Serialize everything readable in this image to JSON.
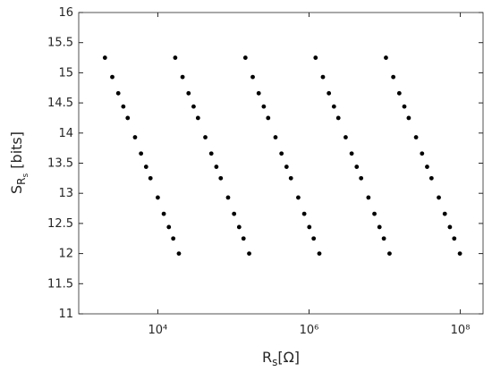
{
  "chart_data": {
    "type": "scatter",
    "xlabel": {
      "main": "R",
      "sub": "s",
      "rest": "[Ω]"
    },
    "ylabel": {
      "main": "S",
      "sub": "R",
      "subsub": "s",
      "rest": " [bits]"
    },
    "log_x": true,
    "color": "#000000",
    "xlim": [
      900,
      200000000
    ],
    "xticks": [
      {
        "value": 10000,
        "label": "10⁴"
      },
      {
        "value": 1000000,
        "label": "10⁶"
      },
      {
        "value": 100000000,
        "label": "10⁸"
      }
    ],
    "ylim": [
      11,
      16
    ],
    "yticks": [
      11,
      11.5,
      12,
      12.5,
      13,
      13.5,
      14,
      14.5,
      15,
      15.5,
      16
    ],
    "x": [
      2000,
      2500,
      3000,
      3500,
      4000,
      5000,
      6000,
      7000,
      8000,
      10000,
      12000,
      14000,
      16000,
      19000,
      17000,
      21250,
      25500,
      29750,
      34000,
      42500,
      51000,
      59500,
      68000,
      85000,
      102000,
      119000,
      136000,
      161500,
      144000,
      180000,
      216000,
      252000,
      288000,
      360000,
      432000,
      504000,
      576000,
      720000,
      864000,
      1008000,
      1152000,
      1368000,
      1220000,
      1525000,
      1830000,
      2135000,
      2440000,
      3050000,
      3660000,
      4270000,
      4880000,
      6100000,
      7320000,
      8540000,
      9760000,
      11590000,
      10400000,
      13000000,
      15600000,
      18200000,
      20800000,
      26000000,
      31200000,
      36400000,
      41600000,
      52000000,
      62400000,
      72800000,
      83200000,
      98800000
    ],
    "values": [
      15.25,
      14.93,
      14.66,
      14.44,
      14.25,
      13.93,
      13.66,
      13.44,
      13.25,
      12.93,
      12.66,
      12.44,
      12.25,
      12,
      15.25,
      14.93,
      14.66,
      14.44,
      14.25,
      13.93,
      13.66,
      13.44,
      13.25,
      12.93,
      12.66,
      12.44,
      12.25,
      12,
      15.25,
      14.93,
      14.66,
      14.44,
      14.25,
      13.93,
      13.66,
      13.44,
      13.25,
      12.93,
      12.66,
      12.44,
      12.25,
      12,
      15.25,
      14.93,
      14.66,
      14.44,
      14.25,
      13.93,
      13.66,
      13.44,
      13.25,
      12.93,
      12.66,
      12.44,
      12.25,
      12,
      15.25,
      14.93,
      14.66,
      14.44,
      14.25,
      13.93,
      13.66,
      13.44,
      13.25,
      12.93,
      12.66,
      12.44,
      12.25,
      12
    ]
  }
}
